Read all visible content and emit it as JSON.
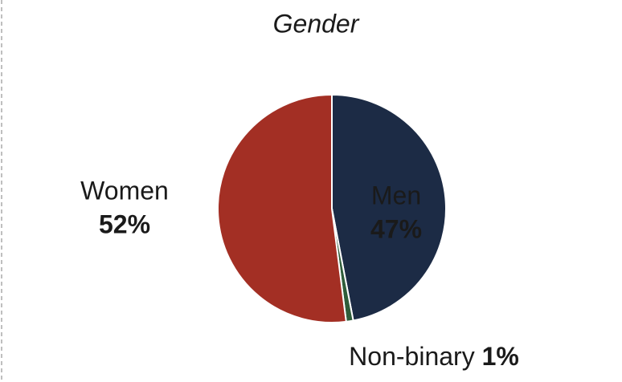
{
  "chart_data": {
    "type": "pie",
    "title": "Gender",
    "categories": [
      "Men",
      "Non-binary",
      "Women"
    ],
    "values": [
      47,
      1,
      52
    ],
    "value_labels": [
      "47%",
      "1%",
      "52%"
    ],
    "colors": [
      "#1c2b45",
      "#2f5d3a",
      "#a32f24"
    ]
  }
}
